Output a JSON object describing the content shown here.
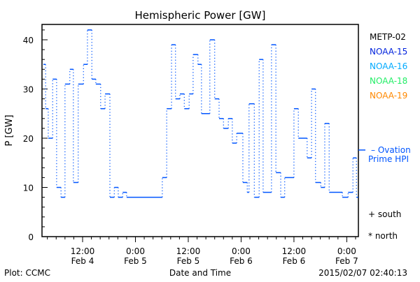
{
  "chart_data": {
    "type": "line",
    "title": "Hemispheric Power [GW]",
    "xlabel": "Date and Time",
    "ylabel": "P [GW]",
    "ylim": [
      0,
      43
    ],
    "xlim_hours_since_feb4_0000": [
      3.0,
      74.6
    ],
    "yticks": [
      0,
      10,
      20,
      30,
      40
    ],
    "xticks": [
      {
        "hour": 12,
        "time": "12:00",
        "date": "Feb 4"
      },
      {
        "hour": 24,
        "time": "0:00",
        "date": "Feb 5"
      },
      {
        "hour": 36,
        "time": "12:00",
        "date": "Feb 5"
      },
      {
        "hour": 48,
        "time": "0:00",
        "date": "Feb 6"
      },
      {
        "hour": 60,
        "time": "12:00",
        "date": "Feb 6"
      },
      {
        "hour": 72,
        "time": "0:00",
        "date": "Feb 7"
      }
    ],
    "legend": [
      {
        "label": "METP-02",
        "color": "#000000"
      },
      {
        "label": "NOAA-15",
        "color": "#0022dd"
      },
      {
        "label": "NOAA-16",
        "color": "#00aaff"
      },
      {
        "label": "NOAA-18",
        "color": "#22ee66"
      },
      {
        "label": "NOAA-19",
        "color": "#ff8800"
      }
    ],
    "legend_placement": "right",
    "series": [
      {
        "name": "Ovation Prime HPI",
        "color": "#0055ff",
        "drawstyle": "steps-post",
        "x": [
          3.1,
          3.6,
          4.2,
          5.2,
          6.1,
          7.1,
          8.0,
          9.1,
          9.9,
          11.0,
          12.2,
          13.1,
          14.1,
          15.0,
          16.1,
          17.1,
          18.2,
          19.2,
          20.1,
          21.1,
          22.0,
          30.1,
          31.1,
          32.2,
          33.1,
          34.1,
          35.1,
          36.2,
          37.1,
          38.2,
          39.0,
          40.9,
          42.0,
          43.0,
          44.0,
          45.1,
          46.0,
          47.0,
          48.4,
          49.4,
          49.8,
          51.0,
          52.1,
          53.0,
          54.9,
          55.9,
          57.0,
          57.9,
          60.0,
          61.0,
          63.0,
          64.0,
          64.9,
          66.1,
          67.0,
          68.0,
          71.0,
          72.3,
          73.4,
          74.2
        ],
        "y": [
          35,
          26,
          20,
          32,
          10,
          8,
          31,
          34,
          11,
          31,
          35,
          42,
          32,
          31,
          26,
          29,
          8,
          10,
          8,
          9,
          8,
          12,
          26,
          39,
          28,
          29,
          26,
          29,
          37,
          35,
          25,
          40,
          28,
          24,
          22,
          24,
          19,
          21,
          11,
          9,
          27,
          8,
          36,
          9,
          39,
          13,
          8,
          12,
          26,
          20,
          16,
          30,
          11,
          10,
          23,
          9,
          8,
          9,
          16,
          8
        ],
        "x_end": 74.6
      }
    ],
    "ovation_marker_value": 17.6,
    "ovation_label_line1": "– Ovation",
    "ovation_label_line2": "Prime HPI",
    "marker_legend": [
      {
        "symbol": "+",
        "label": "south"
      },
      {
        "symbol": "*",
        "label": "north"
      }
    ]
  },
  "footer": {
    "left": "Plot: CCMC",
    "right": "2015/02/07 02:40:13"
  }
}
